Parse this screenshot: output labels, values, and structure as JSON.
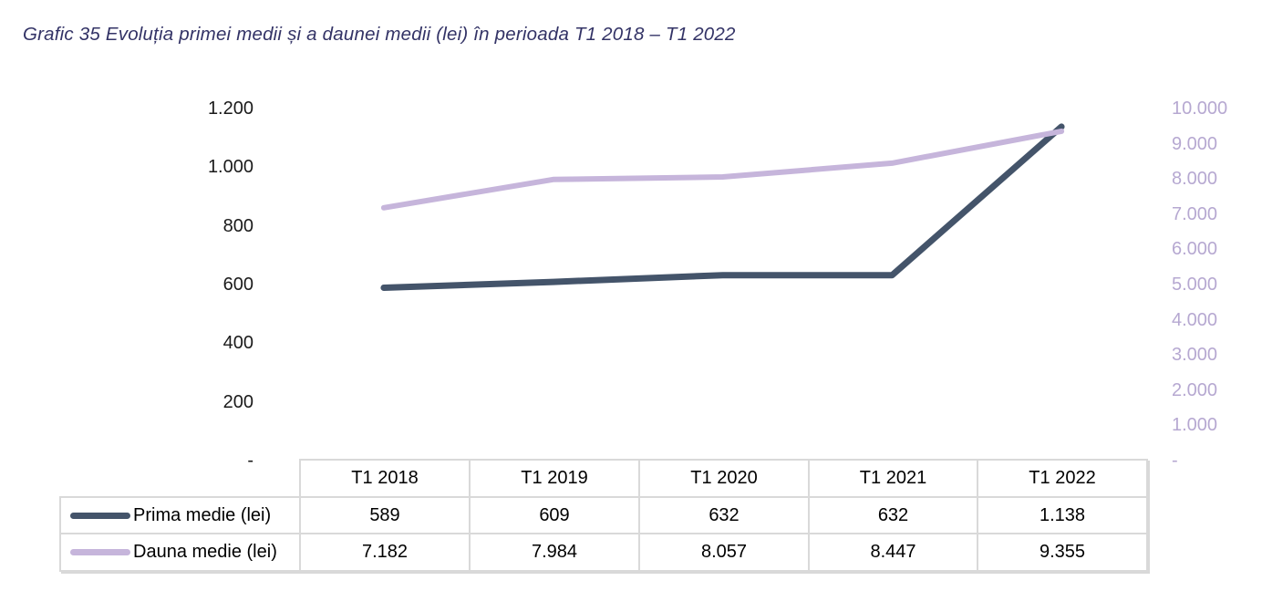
{
  "title": "Grafic 35 Evoluția primei medii și a daunei medii (lei) în perioada T1 2018 – T1 2022",
  "colors": {
    "title_text": "#333366",
    "prima_line": "#44546A",
    "dauna_line": "#C6B5DB",
    "right_axis_text": "#B6A8D1",
    "table_border": "#D9D9D9"
  },
  "chart_data": {
    "type": "line",
    "title": "Grafic 35 Evoluția primei medii și a daunei medii (lei) în perioada T1 2018 – T1 2022",
    "categories": [
      "T1 2018",
      "T1 2019",
      "T1 2020",
      "T1 2021",
      "T1 2022"
    ],
    "series": [
      {
        "name": "Prima medie (lei)",
        "axis": "left",
        "color": "#44546A",
        "values": [
          589,
          609,
          632,
          632,
          1138
        ],
        "display_values": [
          "589",
          "609",
          "632",
          "632",
          "1.138"
        ]
      },
      {
        "name": "Dauna medie (lei)",
        "axis": "right",
        "color": "#C6B5DB",
        "values": [
          7182,
          7984,
          8057,
          8447,
          9355
        ],
        "display_values": [
          "7.182",
          "7.984",
          "8.057",
          "8.447",
          "9.355"
        ]
      }
    ],
    "left_axis": {
      "min": 0,
      "max": 1200,
      "step": 200,
      "tick_labels": [
        "1.200",
        "1.000",
        "800",
        "600",
        "400",
        "200",
        "-"
      ]
    },
    "right_axis": {
      "min": 0,
      "max": 10000,
      "step": 1000,
      "tick_labels": [
        "10.000",
        "9.000",
        "8.000",
        "7.000",
        "6.000",
        "5.000",
        "4.000",
        "3.000",
        "2.000",
        "1.000",
        "-"
      ]
    },
    "grid": false,
    "legend_position": "table-left"
  }
}
